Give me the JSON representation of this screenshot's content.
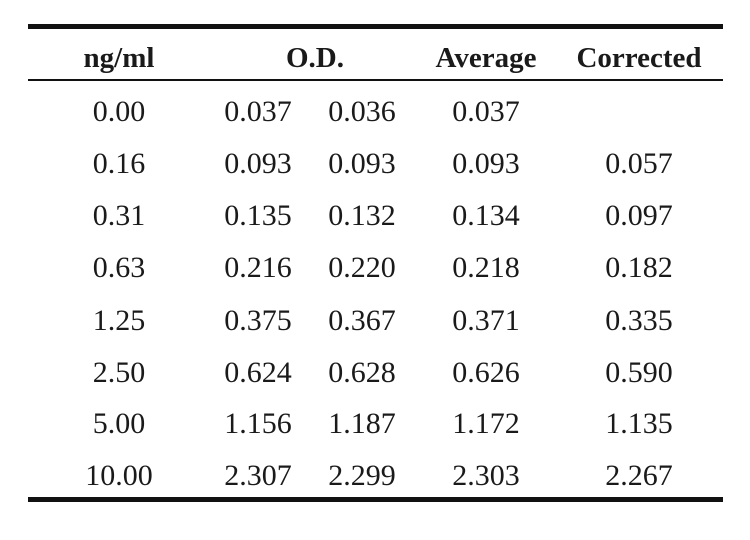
{
  "table": {
    "headers": {
      "concentration": "ng/ml",
      "od": "O.D.",
      "average": "Average",
      "corrected": "Corrected"
    },
    "rows": [
      {
        "conc": "0.00",
        "od1": "0.037",
        "od2": "0.036",
        "avg": "0.037",
        "corrected": ""
      },
      {
        "conc": "0.16",
        "od1": "0.093",
        "od2": "0.093",
        "avg": "0.093",
        "corrected": "0.057"
      },
      {
        "conc": "0.31",
        "od1": "0.135",
        "od2": "0.132",
        "avg": "0.134",
        "corrected": "0.097"
      },
      {
        "conc": "0.63",
        "od1": "0.216",
        "od2": "0.220",
        "avg": "0.218",
        "corrected": "0.182"
      },
      {
        "conc": "1.25",
        "od1": "0.375",
        "od2": "0.367",
        "avg": "0.371",
        "corrected": "0.335"
      },
      {
        "conc": "2.50",
        "od1": "0.624",
        "od2": "0.628",
        "avg": "0.626",
        "corrected": "0.590"
      },
      {
        "conc": "5.00",
        "od1": "1.156",
        "od2": "1.187",
        "avg": "1.172",
        "corrected": "1.135"
      },
      {
        "conc": "10.00",
        "od1": "2.307",
        "od2": "2.299",
        "avg": "2.303",
        "corrected": "2.267"
      }
    ]
  }
}
